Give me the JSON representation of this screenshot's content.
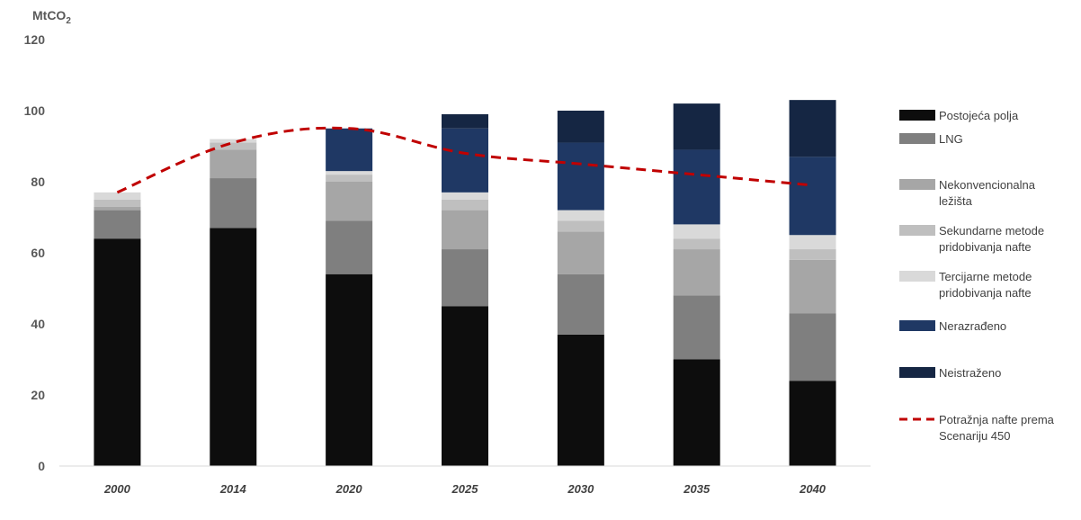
{
  "chart_data": {
    "type": "bar",
    "stacked": true,
    "title": "",
    "unit_label": "MtCO₂",
    "unit_main": "MtCO",
    "unit_sub": "2",
    "categories": [
      "2000",
      "2014",
      "2020",
      "2025",
      "2030",
      "2035",
      "2040"
    ],
    "ylim": [
      0,
      120
    ],
    "yticks": [
      0,
      20,
      40,
      60,
      80,
      100,
      120
    ],
    "grid": false,
    "legend_position": "right",
    "series": [
      {
        "name": "Postojeća polja",
        "color": "#0d0d0d",
        "values": [
          64,
          67,
          54,
          45,
          37,
          30,
          24
        ]
      },
      {
        "name": "LNG",
        "color": "#7f7f7f",
        "values": [
          8,
          14,
          15,
          16,
          17,
          18,
          19
        ]
      },
      {
        "name": "Nekonvencionalna ležišta",
        "color": "#a6a6a6",
        "values": [
          1,
          8,
          11,
          11,
          12,
          13,
          15
        ]
      },
      {
        "name": "Sekundarne metode pridobivanja nafte",
        "color": "#bfbfbf",
        "values": [
          2,
          2,
          2,
          3,
          3,
          3,
          3
        ]
      },
      {
        "name": "Tercijarne metode pridobivanja nafte",
        "color": "#d9d9d9",
        "values": [
          2,
          1,
          1,
          2,
          3,
          4,
          4
        ]
      },
      {
        "name": "Nerazrađeno",
        "color": "#1f3864",
        "values": [
          0,
          0,
          12,
          18,
          19,
          21,
          22
        ]
      },
      {
        "name": "Neistraženo",
        "color": "#152643",
        "values": [
          0,
          0,
          0,
          4,
          9,
          13,
          16
        ]
      }
    ],
    "line_series": {
      "name": "Potražnja nafte prema Scenariju 450",
      "color": "#c00000",
      "style": "dashed",
      "values": [
        77,
        91,
        95,
        88,
        85,
        82,
        79
      ]
    },
    "legend_entries": [
      {
        "lines": [
          "Postojeća polja"
        ],
        "color": "#0d0d0d",
        "kind": "box"
      },
      {
        "lines": [
          "LNG"
        ],
        "color": "#7f7f7f",
        "kind": "box"
      },
      {
        "lines": [
          "Nekonvencionalna",
          "ležišta"
        ],
        "color": "#a6a6a6",
        "kind": "box"
      },
      {
        "lines": [
          "Sekundarne metode",
          "pridobivanja nafte"
        ],
        "color": "#bfbfbf",
        "kind": "box"
      },
      {
        "lines": [
          "Tercijarne metode",
          "pridobivanja nafte"
        ],
        "color": "#d9d9d9",
        "kind": "box"
      },
      {
        "lines": [
          "Nerazrađeno"
        ],
        "color": "#1f3864",
        "kind": "box"
      },
      {
        "lines": [
          "Neistraženo"
        ],
        "color": "#152643",
        "kind": "box"
      },
      {
        "lines": [
          "Potražnja nafte prema",
          "Scenariju 450"
        ],
        "color": "#c00000",
        "kind": "line"
      }
    ]
  }
}
